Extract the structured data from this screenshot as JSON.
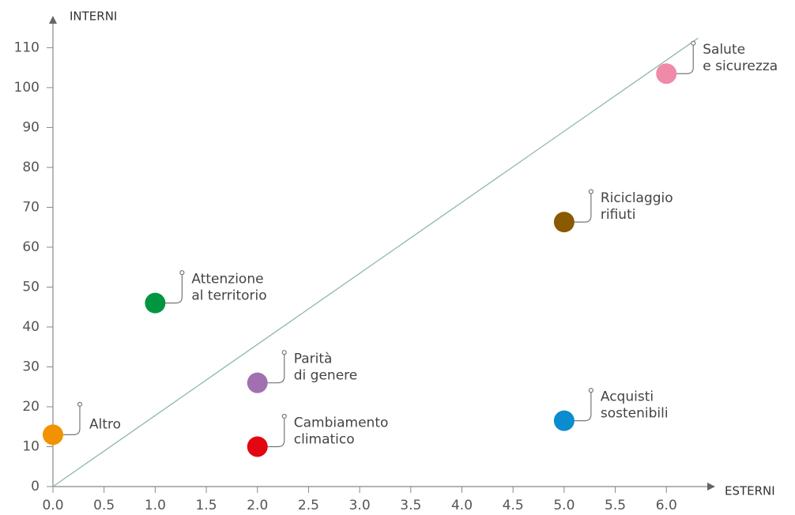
{
  "chart_data": {
    "type": "scatter",
    "x_label": "ESTERNI",
    "y_label": "INTERNI",
    "xlim": [
      0,
      6.4
    ],
    "ylim": [
      0,
      118
    ],
    "xticks": [
      {
        "value": 0,
        "label": "0.0"
      },
      0.5,
      {
        "value": 1,
        "label": "1.0"
      },
      1.5,
      {
        "value": 2,
        "label": "2.0"
      },
      2.5,
      {
        "value": 3,
        "label": "3.0"
      },
      3.5,
      {
        "value": 4,
        "label": "4.0"
      },
      4.5,
      {
        "value": 5,
        "label": "5.0"
      },
      5.5,
      {
        "value": 6,
        "label": "6.0"
      }
    ],
    "yticks": [
      0,
      10,
      20,
      30,
      40,
      50,
      60,
      70,
      80,
      90,
      100,
      110
    ],
    "trend_line": {
      "x": [
        0,
        6.31
      ],
      "y": [
        0,
        112.4
      ],
      "color": "#8fb8a8"
    },
    "points": [
      {
        "label": [
          "Altro"
        ],
        "x": 0,
        "y": 13,
        "color": "#f39200"
      },
      {
        "label": [
          "Attenzione",
          "al territorio"
        ],
        "x": 1,
        "y": 46,
        "color": "#009640"
      },
      {
        "label": [
          "Parità",
          "di genere"
        ],
        "x": 2,
        "y": 26,
        "color": "#a070b0"
      },
      {
        "label": [
          "Cambiamento",
          "climatico"
        ],
        "x": 2,
        "y": 10,
        "color": "#e30613"
      },
      {
        "label": [
          "Acquisti",
          "sostenibili"
        ],
        "x": 5,
        "y": 16.5,
        "color": "#0a8ccf"
      },
      {
        "label": [
          "Riciclaggio",
          "rifiuti"
        ],
        "x": 5,
        "y": 66.3,
        "color": "#8a5a00"
      },
      {
        "label": [
          "Salute",
          "e sicurezza"
        ],
        "x": 6,
        "y": 103.5,
        "color": "#ef8aa8"
      }
    ]
  }
}
